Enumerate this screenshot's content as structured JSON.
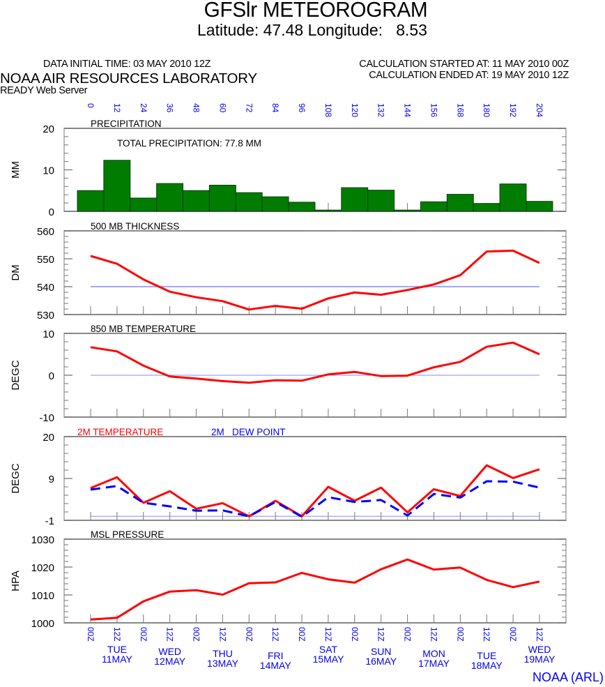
{
  "header": {
    "title": "GFSlr METEOROGRAM",
    "subtitle": "Latitude: 47.48 Longitude:   8.53",
    "data_initial_time": "DATA INITIAL TIME: 03 MAY 2010 12Z",
    "calculation_started": "CALCULATION STARTED AT: 11 MAY 2010 00Z",
    "calculation_ended": "CALCULATION ENDED AT: 19 MAY 2010 12Z",
    "organization": "NOAA AIR RESOURCES LABORATORY",
    "server": "READY Web Server",
    "footer_credit": "NOAA (ARL)"
  },
  "colors": {
    "precip_bar": "#007d00",
    "line_red": "#ff0000",
    "dew_blue": "#0000ff",
    "reference_line": "#8888ff",
    "axis_label_blue": "#0000ee",
    "frame": "#777777"
  },
  "chart_data": [
    {
      "type": "bar",
      "panel": "precipitation",
      "title": "PRECIPITATION",
      "annotation": "TOTAL PRECIPITATION:  77.8 MM",
      "ylabel": "MM",
      "ylim": [
        0,
        20
      ],
      "yticks": [
        "0",
        "10",
        "20"
      ],
      "x_hours": [
        0,
        12,
        24,
        36,
        48,
        60,
        72,
        84,
        96,
        108,
        120,
        132,
        144,
        156,
        168,
        180,
        192,
        204
      ],
      "values": [
        5.0,
        12.3,
        3.2,
        6.7,
        5.0,
        6.3,
        4.5,
        3.5,
        2.2,
        0.3,
        5.7,
        5.1,
        0.3,
        2.3,
        4.1,
        1.9,
        6.6,
        2.4
      ]
    },
    {
      "type": "line",
      "panel": "thickness",
      "title": "500 MB  THICKNESS",
      "ylabel": "DM",
      "ylim": [
        530,
        560
      ],
      "yticks": [
        "530",
        "540",
        "550",
        "560"
      ],
      "reference_line": 540,
      "x_hours": [
        0,
        12,
        24,
        36,
        48,
        60,
        72,
        84,
        96,
        108,
        120,
        132,
        144,
        156,
        168,
        180,
        192,
        204
      ],
      "series": [
        {
          "name": "500 MB THICKNESS",
          "values": [
            551.0,
            548.2,
            542.6,
            538.2,
            536.2,
            534.8,
            531.8,
            533.1,
            532.1,
            535.8,
            537.9,
            537.1,
            538.8,
            540.8,
            544.1,
            552.6,
            552.9,
            548.5
          ]
        }
      ]
    },
    {
      "type": "line",
      "panel": "temp850",
      "title": "850 MB  TEMPERATURE",
      "ylabel": "DEGC",
      "ylim": [
        -10,
        10
      ],
      "yticks": [
        "-10",
        "0",
        "10"
      ],
      "reference_line": 0,
      "x_hours": [
        0,
        12,
        24,
        36,
        48,
        60,
        72,
        84,
        96,
        108,
        120,
        132,
        144,
        156,
        168,
        180,
        192,
        204
      ],
      "series": [
        {
          "name": "850 MB TEMPERATURE",
          "values": [
            6.7,
            5.7,
            2.3,
            -0.3,
            -0.8,
            -1.4,
            -1.8,
            -1.2,
            -1.3,
            0.2,
            0.8,
            -0.2,
            -0.1,
            1.9,
            3.2,
            6.8,
            7.8,
            5.0
          ]
        }
      ]
    },
    {
      "type": "line",
      "panel": "surface",
      "ylabel": "DEGC",
      "ylim": [
        -1,
        20
      ],
      "yticks": [
        "-1",
        "9",
        "20"
      ],
      "reference_line": 0,
      "x_hours": [
        0,
        12,
        24,
        36,
        48,
        60,
        72,
        84,
        96,
        108,
        120,
        132,
        144,
        156,
        168,
        180,
        192,
        204
      ],
      "series": [
        {
          "name": "2M TEMPERATURE",
          "style": "solid",
          "values": [
            7.1,
            9.8,
            3.4,
            6.3,
            1.9,
            3.3,
            0.0,
            3.9,
            0.0,
            7.4,
            3.9,
            7.2,
            1.0,
            6.8,
            5.1,
            12.8,
            9.6,
            11.8
          ]
        },
        {
          "name": "2M   DEW POINT",
          "style": "dashed",
          "values": [
            6.7,
            7.6,
            3.4,
            2.5,
            1.4,
            1.5,
            0.0,
            3.6,
            -0.1,
            4.8,
            3.6,
            4.1,
            0.2,
            5.6,
            4.7,
            8.8,
            8.7,
            7.2
          ]
        }
      ]
    },
    {
      "type": "line",
      "panel": "pressure",
      "title": "MSL PRESSURE",
      "ylabel": "HPA",
      "ylim": [
        1000,
        1030
      ],
      "yticks": [
        "1000",
        "1010",
        "1020",
        "1030"
      ],
      "x_hours": [
        0,
        12,
        24,
        36,
        48,
        60,
        72,
        84,
        96,
        108,
        120,
        132,
        144,
        156,
        168,
        180,
        192,
        204
      ],
      "series": [
        {
          "name": "MSL PRESSURE",
          "values": [
            1001.2,
            1001.8,
            1007.7,
            1011.2,
            1011.7,
            1010.1,
            1014.2,
            1014.5,
            1017.9,
            1015.6,
            1014.4,
            1019.2,
            1022.7,
            1019.1,
            1019.8,
            1015.4,
            1012.8,
            1014.8
          ]
        }
      ]
    }
  ],
  "x_axis": {
    "hour_labels": [
      "0",
      "12",
      "24",
      "36",
      "48",
      "60",
      "72",
      "84",
      "96",
      "108",
      "120",
      "132",
      "144",
      "156",
      "168",
      "180",
      "192",
      "204"
    ],
    "time_labels": [
      "00Z",
      "12Z",
      "00Z",
      "12Z",
      "00Z",
      "12Z",
      "00Z",
      "12Z",
      "00Z",
      "12Z",
      "00Z",
      "12Z",
      "00Z",
      "12Z",
      "00Z",
      "12Z",
      "00Z",
      "12Z"
    ],
    "days": [
      {
        "weekday": "TUE",
        "date": "11MAY"
      },
      {
        "weekday": "WED",
        "date": "12MAY"
      },
      {
        "weekday": "THU",
        "date": "13MAY"
      },
      {
        "weekday": "FRI",
        "date": "14MAY"
      },
      {
        "weekday": "SAT",
        "date": "15MAY"
      },
      {
        "weekday": "SUN",
        "date": "16MAY"
      },
      {
        "weekday": "MON",
        "date": "17MAY"
      },
      {
        "weekday": "TUE",
        "date": "18MAY"
      },
      {
        "weekday": "WED",
        "date": "19MAY"
      }
    ]
  }
}
